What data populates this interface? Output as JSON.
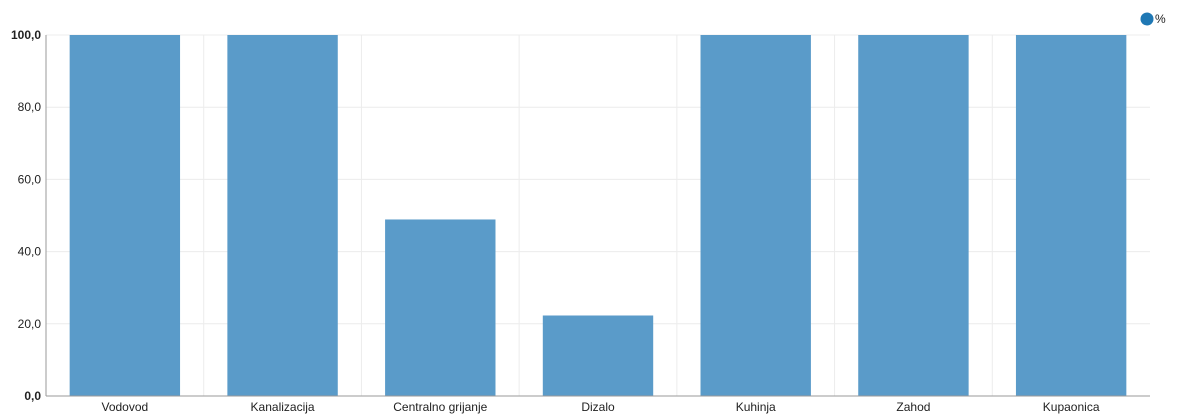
{
  "chart_data": {
    "type": "bar",
    "categories": [
      "Vodovod",
      "Kanalizacija",
      "Centralno grijanje",
      "Dizalo",
      "Kuhinja",
      "Zahod",
      "Kupaonica"
    ],
    "series": [
      {
        "name": "%",
        "values": [
          100.0,
          100.0,
          48.9,
          22.3,
          100.0,
          100.0,
          100.0
        ]
      }
    ],
    "title": "",
    "xlabel": "",
    "ylabel": "",
    "ylim": [
      0,
      100
    ],
    "yticks": [
      0,
      20,
      40,
      60,
      80,
      100
    ],
    "ytick_labels": [
      "0,0",
      "20,0",
      "40,0",
      "60,0",
      "80,0",
      "100,0"
    ],
    "grid": true,
    "legend_position": "top-right",
    "colors": {
      "bar": "#5a9bc9",
      "legend_marker": "#1f78b4",
      "grid": "#ececec",
      "axis": "#9a9a9a"
    }
  }
}
